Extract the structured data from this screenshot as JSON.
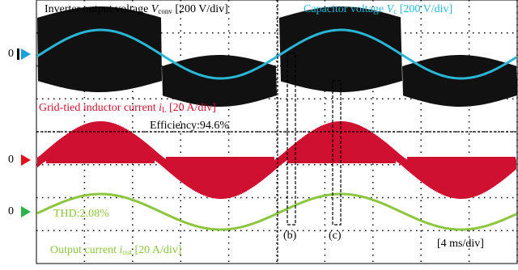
{
  "labels": {
    "inverter": {
      "text": "Inverter output voltage ",
      "symbol": "V",
      "subscript": "conv",
      "scale": " [200 V/div]"
    },
    "capacitor": {
      "text": "Capacitor voltage ",
      "symbol": "V",
      "subscript": "c",
      "scale": " [200 V/div]"
    },
    "inductor": {
      "text": "Grid-tied inductor current ",
      "symbol": "i",
      "subscript": "L",
      "scale": " [20 A/div]"
    },
    "output": {
      "text": "Output current ",
      "symbol": "i",
      "subscript": "out",
      "scale": " [20 A/div]"
    }
  },
  "markers": [
    "0",
    "0",
    "0"
  ],
  "annotations": {
    "efficiency": "Efficiency:94.6%",
    "thd": "THD:2.08%",
    "b": "(b)",
    "c": "(c)",
    "time_scale": "[4 ms/div]"
  }
}
